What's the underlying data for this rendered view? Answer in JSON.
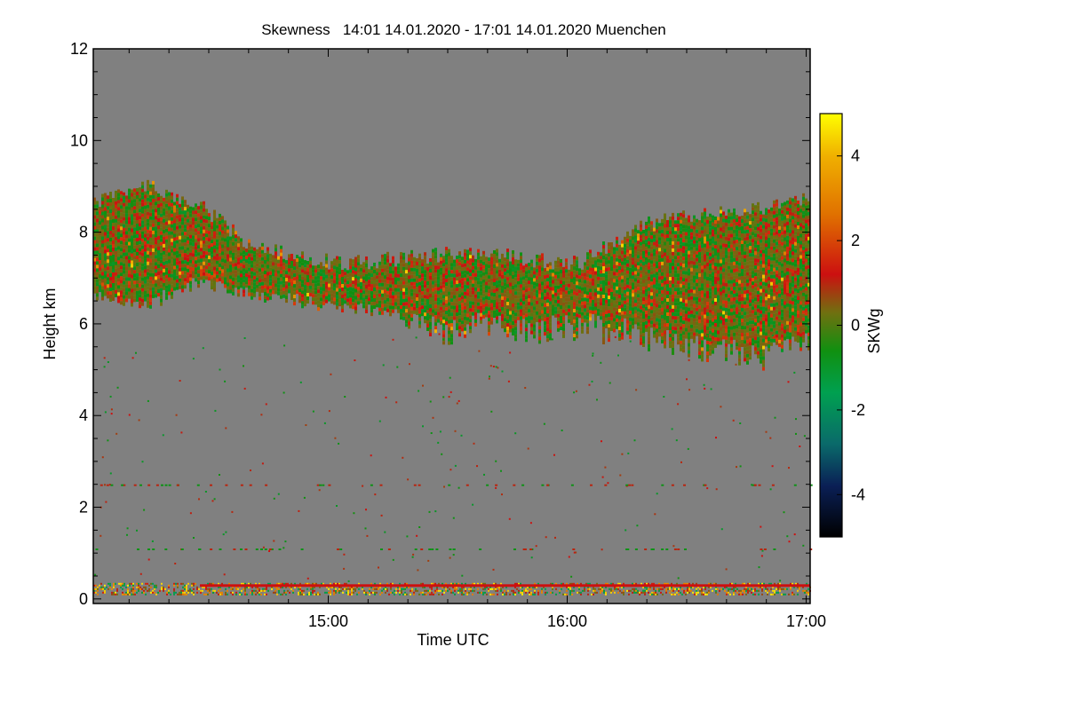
{
  "chart_data": {
    "type": "heatmap",
    "title": "Skewness   14:01 14.01.2020 - 17:01 14.01.2020 Muenchen",
    "xlabel": "Time UTC",
    "ylabel": "Height km",
    "x_range_hours": [
      14.0167,
      17.0167
    ],
    "y_range_km": [
      -0.1,
      12.0
    ],
    "x_ticks": [
      {
        "value": 15.0,
        "label": "15:00"
      },
      {
        "value": 16.0,
        "label": "16:00"
      },
      {
        "value": 17.0,
        "label": "17:00"
      }
    ],
    "y_ticks": [
      {
        "value": 0,
        "label": "0"
      },
      {
        "value": 2,
        "label": "2"
      },
      {
        "value": 4,
        "label": "4"
      },
      {
        "value": 6,
        "label": "6"
      },
      {
        "value": 8,
        "label": "8"
      },
      {
        "value": 10,
        "label": "10"
      },
      {
        "value": 12,
        "label": "12"
      }
    ],
    "colorbar": {
      "label": "SKWg",
      "range": [
        -5,
        5
      ],
      "ticks": [
        {
          "value": 4,
          "label": "4"
        },
        {
          "value": 2,
          "label": "2"
        },
        {
          "value": 0,
          "label": "0"
        },
        {
          "value": -2,
          "label": "-2"
        },
        {
          "value": -4,
          "label": "-4"
        }
      ],
      "colors": [
        {
          "value": -5,
          "color": "#000000"
        },
        {
          "value": -3.8,
          "color": "#0a1f55"
        },
        {
          "value": -2.8,
          "color": "#0a6a6a"
        },
        {
          "value": -1.6,
          "color": "#00a050"
        },
        {
          "value": -0.6,
          "color": "#109010"
        },
        {
          "value": 0.3,
          "color": "#707010"
        },
        {
          "value": 1.2,
          "color": "#cc1010"
        },
        {
          "value": 2.6,
          "color": "#e07000"
        },
        {
          "value": 4.0,
          "color": "#f0b000"
        },
        {
          "value": 5,
          "color": "#ffff00"
        }
      ]
    },
    "background_color": "#808080",
    "cloud_layer": {
      "description_values": "upper cloud layer skewness, mostly 0 to 1.5",
      "top_km": [
        8.7,
        9.0,
        8.6,
        7.8,
        7.5,
        7.3,
        7.4,
        7.5,
        7.6,
        7.4,
        7.3,
        8.2,
        8.4,
        8.5,
        8.7
      ],
      "bottom_km": [
        6.8,
        6.6,
        7.1,
        6.8,
        6.7,
        6.5,
        6.4,
        6.2,
        6.3,
        6.2,
        6.3,
        6.1,
        5.8,
        5.6,
        5.9
      ],
      "time_hours": [
        14.02,
        14.25,
        14.45,
        14.65,
        14.85,
        15.05,
        15.25,
        15.45,
        15.65,
        15.85,
        16.05,
        16.3,
        16.55,
        16.8,
        17.01
      ],
      "typical_values": [
        -1.0,
        -0.5,
        0.2,
        0.6,
        1.2,
        2.0
      ]
    },
    "near_surface_band": {
      "height_km": [
        0.1,
        0.35
      ],
      "typical_values": [
        -1.5,
        0.5,
        1.2,
        3.0,
        4.5
      ]
    }
  }
}
